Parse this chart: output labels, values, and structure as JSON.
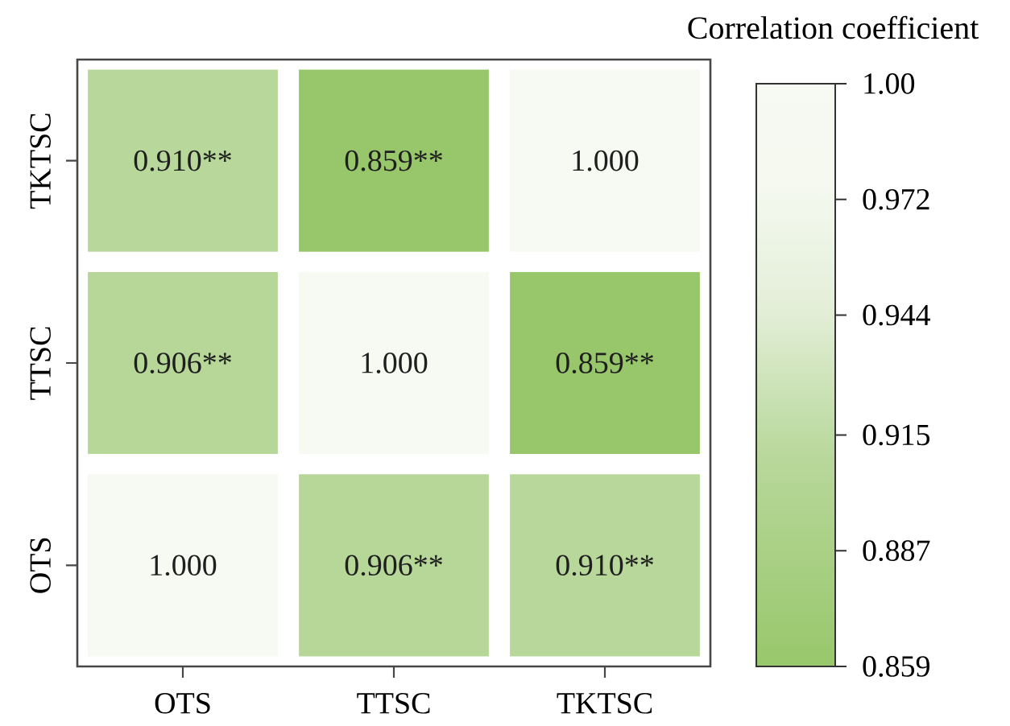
{
  "chart_data": {
    "type": "heatmap",
    "categories": [
      "OTS",
      "TTSC",
      "TKTSC"
    ],
    "y_categories": [
      "TKTSC",
      "TTSC",
      "OTS"
    ],
    "cells": [
      [
        0.91,
        0.859,
        1.0
      ],
      [
        0.906,
        1.0,
        0.859
      ],
      [
        1.0,
        0.906,
        0.91
      ]
    ],
    "cell_labels": [
      [
        "0.910**",
        "0.859**",
        "1.000"
      ],
      [
        "0.906**",
        "1.000",
        "0.859**"
      ],
      [
        "1.000",
        "0.906**",
        "0.910**"
      ]
    ],
    "clim": [
      0.859,
      1.0
    ],
    "cticks": [
      0.859,
      0.887,
      0.915,
      0.944,
      0.972,
      {
        "value": 1.0,
        "label": "1.00"
      }
    ],
    "clabel": "Correlation coefficient"
  }
}
